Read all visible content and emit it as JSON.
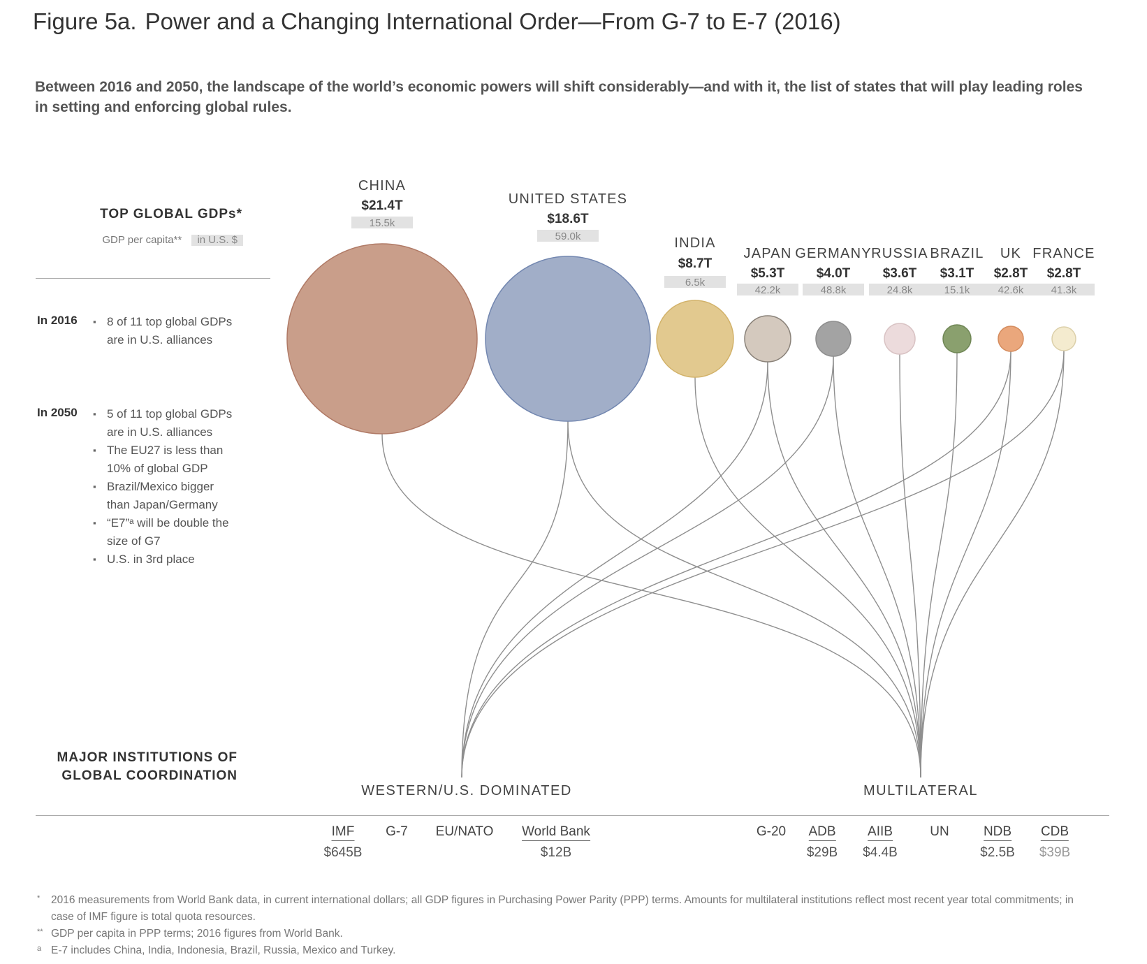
{
  "title": {
    "label": "Figure 5a.",
    "text": "Power and a Changing International Order—From G-7 to E-7 (2016)"
  },
  "subtitle": "Between 2016 and 2050, the landscape of the world’s economic powers will shift considerably—and with it, the list of states that will play leading roles in setting and enforcing global rules.",
  "left_panel": {
    "heading": "TOP GLOBAL GDPs*",
    "per_capita_label": "GDP per capita**",
    "per_capita_unit": "in U.S. $",
    "year_2016": {
      "label": "In 2016",
      "bullets": [
        "8 of 11 top global GDPs are in U.S. alliances"
      ]
    },
    "year_2050": {
      "label": "In 2050",
      "bullets": [
        "5 of 11 top global GDPs are in U.S. alliances",
        "The EU27 is less than 10% of global GDP",
        "Brazil/Mexico bigger than Japan/Germany",
        "“E7”ᵃ will be double the size of G7",
        "U.S. in 3rd place"
      ]
    }
  },
  "countries": [
    {
      "name": "CHINA",
      "gdp": "$21.4T",
      "per_capita": "15.5k",
      "color": "#c99e8a",
      "stroke": "#b07a66",
      "linked_to": [
        "multilateral"
      ]
    },
    {
      "name": "UNITED STATES",
      "gdp": "$18.6T",
      "per_capita": "59.0k",
      "color": "#a1aec8",
      "stroke": "#7387b0",
      "linked_to": [
        "western",
        "multilateral"
      ]
    },
    {
      "name": "INDIA",
      "gdp": "$8.7T",
      "per_capita": "6.5k",
      "color": "#e2c98f",
      "stroke": "#d2b26a",
      "linked_to": [
        "multilateral"
      ]
    },
    {
      "name": "JAPAN",
      "gdp": "$5.3T",
      "per_capita": "42.2k",
      "color": "#d4c9be",
      "stroke": "#8a8279",
      "linked_to": [
        "western",
        "multilateral"
      ]
    },
    {
      "name": "GERMANY",
      "gdp": "$4.0T",
      "per_capita": "48.8k",
      "color": "#a3a3a3",
      "stroke": "#8e8e8e",
      "linked_to": [
        "western",
        "multilateral"
      ]
    },
    {
      "name": "RUSSIA",
      "gdp": "$3.6T",
      "per_capita": "24.8k",
      "color": "#ecdbdc",
      "stroke": "#d9c3c4",
      "linked_to": [
        "multilateral"
      ]
    },
    {
      "name": "BRAZIL",
      "gdp": "$3.1T",
      "per_capita": "15.1k",
      "color": "#8aa06e",
      "stroke": "#6f8655",
      "linked_to": [
        "multilateral"
      ]
    },
    {
      "name": "UK",
      "gdp": "$2.8T",
      "per_capita": "42.6k",
      "color": "#eaa77c",
      "stroke": "#d48b5d",
      "linked_to": [
        "western",
        "multilateral"
      ]
    },
    {
      "name": "FRANCE",
      "gdp": "$2.8T",
      "per_capita": "41.3k",
      "color": "#f4ebcf",
      "stroke": "#dcd0aa",
      "linked_to": [
        "western",
        "multilateral"
      ]
    }
  ],
  "institutions": {
    "heading": "MAJOR INSTITUTIONS OF GLOBAL COORDINATION",
    "western": {
      "label": "WESTERN/U.S. DOMINATED",
      "items": [
        {
          "name": "IMF",
          "value": "$645B",
          "underlined": true
        },
        {
          "name": "G-7",
          "value": "",
          "underlined": false
        },
        {
          "name": "EU/NATO",
          "value": "",
          "underlined": false
        },
        {
          "name": "World Bank",
          "value": "$12B",
          "underlined": true
        }
      ]
    },
    "multilateral": {
      "label": "MULTILATERAL",
      "items": [
        {
          "name": "G-20",
          "value": "",
          "underlined": false
        },
        {
          "name": "ADB",
          "value": "$29B",
          "underlined": true
        },
        {
          "name": "AIIB",
          "value": "$4.4B",
          "underlined": true
        },
        {
          "name": "UN",
          "value": "",
          "underlined": false
        },
        {
          "name": "NDB",
          "value": "$2.5B",
          "underlined": true
        },
        {
          "name": "CDB",
          "value": "$39B",
          "underlined": true,
          "muted": true
        }
      ]
    }
  },
  "footnotes": [
    {
      "mark": "*",
      "text": "2016 measurements from World Bank data, in current international dollars; all GDP figures in Purchasing Power Parity (PPP) terms. Amounts for multilateral institutions reflect most recent year total commitments; in case of IMF figure is total quota resources."
    },
    {
      "mark": "**",
      "text": "GDP per capita in PPP terms; 2016 figures from World Bank."
    },
    {
      "mark": "a",
      "text": "E-7 includes China, India, Indonesia, Brazil, Russia, Mexico and Turkey."
    }
  ]
}
